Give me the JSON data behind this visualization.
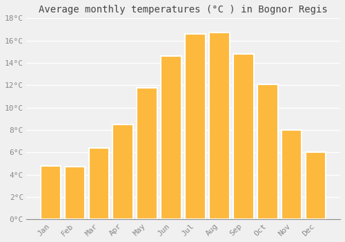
{
  "months": [
    "Jan",
    "Feb",
    "Mar",
    "Apr",
    "May",
    "Jun",
    "Jul",
    "Aug",
    "Sep",
    "Oct",
    "Nov",
    "Dec"
  ],
  "values": [
    4.8,
    4.7,
    6.4,
    8.5,
    11.8,
    14.6,
    16.6,
    16.7,
    14.8,
    12.1,
    8.0,
    6.0
  ],
  "bar_color": "#FDB93E",
  "bar_edge_color": "#ffffff",
  "title": "Average monthly temperatures (°C ) in Bognor Regis",
  "ylim": [
    0,
    18
  ],
  "yticks": [
    0,
    2,
    4,
    6,
    8,
    10,
    12,
    14,
    16,
    18
  ],
  "ytick_labels": [
    "0°C",
    "2°C",
    "4°C",
    "6°C",
    "8°C",
    "10°C",
    "12°C",
    "14°C",
    "16°C",
    "18°C"
  ],
  "background_color": "#f0f0f0",
  "plot_bg_color": "#f0f0f0",
  "grid_color": "#ffffff",
  "title_fontsize": 10,
  "tick_fontsize": 8,
  "tick_color": "#888888",
  "title_color": "#444444",
  "bar_width": 0.85,
  "bar_linewidth": 1.5
}
